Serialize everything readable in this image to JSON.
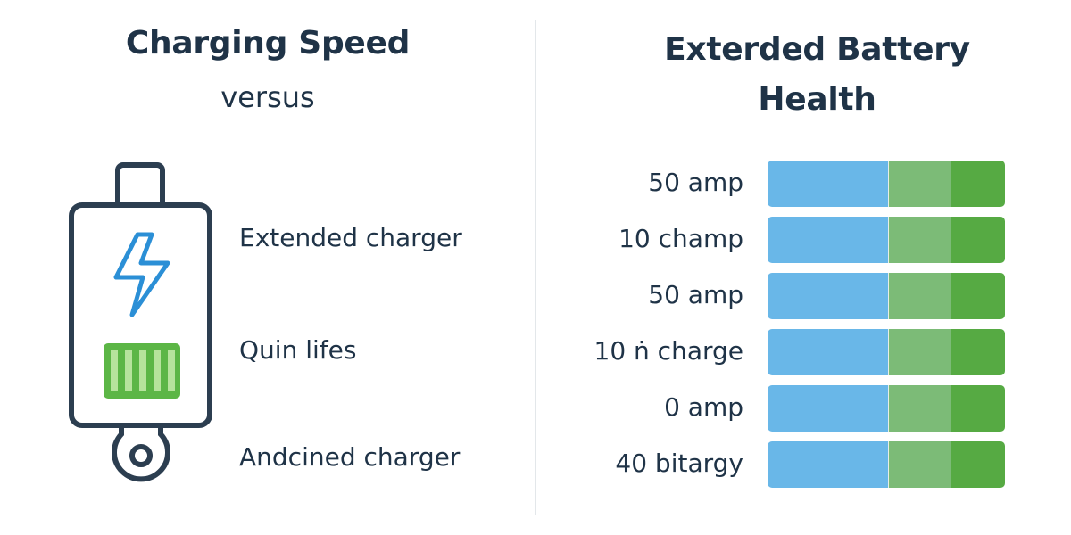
{
  "left": {
    "title": "Charging Speed",
    "subtitle": "versus",
    "battery": {
      "icons": [
        "lightning-bolt-icon",
        "charge-level-icon",
        "connector-ring-icon"
      ],
      "colors": {
        "outline": "#2c3e50",
        "bolt": "#2b8fd6",
        "charge": "#5cb646"
      }
    },
    "features": [
      "Extended charger",
      "Quin lifes",
      "Andcined charger"
    ]
  },
  "right": {
    "title_line1": "Exterded Battery",
    "title_line2": "Health",
    "rows": [
      {
        "label": "50 amp"
      },
      {
        "label": "10 champ"
      },
      {
        "label": "50 amp"
      },
      {
        "label": "10 ṅ charge"
      },
      {
        "label": "0 amp"
      },
      {
        "label": "40 bitargy"
      }
    ],
    "bar_colors": {
      "blue": "#69b7e8",
      "light_green": "#7cbb77",
      "green": "#56aa43"
    }
  }
}
